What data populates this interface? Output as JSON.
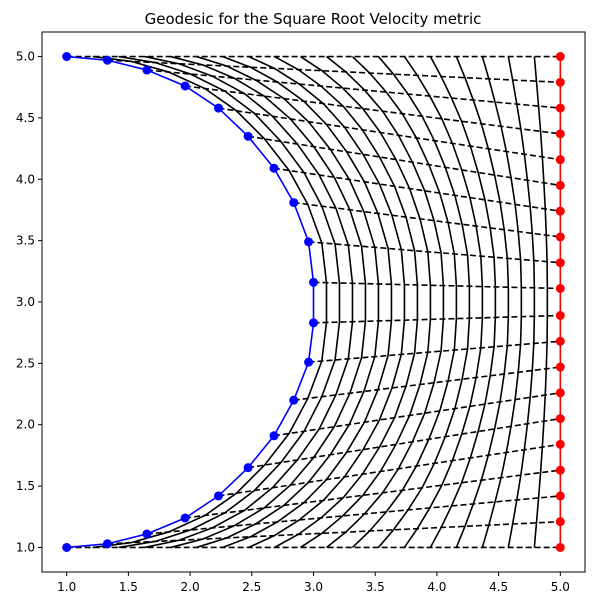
{
  "chart_data": {
    "type": "line",
    "title": "Geodesic for the Square Root Velocity metric",
    "xlabel": "",
    "ylabel": "",
    "xlim": [
      0.8,
      5.2
    ],
    "ylim": [
      0.8,
      5.2
    ],
    "x_ticks": [
      "1.0",
      "1.5",
      "2.0",
      "2.5",
      "3.0",
      "3.5",
      "4.0",
      "4.5",
      "5.0"
    ],
    "y_ticks": [
      "1.0",
      "1.5",
      "2.0",
      "2.5",
      "3.0",
      "3.5",
      "4.0",
      "4.5",
      "5.0"
    ],
    "grid": false,
    "n_points": 20,
    "n_curves": 20,
    "start_curve": {
      "name": "",
      "color": "#0000ff",
      "x": [
        1.0,
        1.33,
        1.65,
        1.96,
        2.23,
        2.47,
        2.68,
        2.84,
        2.96,
        3.0,
        3.0,
        2.96,
        2.84,
        2.68,
        2.47,
        2.23,
        1.96,
        1.65,
        1.33,
        1.0
      ],
      "y": [
        1.0,
        1.03,
        1.11,
        1.24,
        1.42,
        1.65,
        1.91,
        2.2,
        2.51,
        2.83,
        3.16,
        3.49,
        3.81,
        4.09,
        4.35,
        4.58,
        4.76,
        4.89,
        4.97,
        5.0
      ]
    },
    "end_curve": {
      "name": "",
      "color": "#ff0000",
      "x": [
        5.0,
        5.0,
        5.0,
        5.0,
        5.0,
        5.0,
        5.0,
        5.0,
        5.0,
        5.0,
        5.0,
        5.0,
        5.0,
        5.0,
        5.0,
        5.0,
        5.0,
        5.0,
        5.0,
        5.0
      ],
      "y": [
        1.0,
        1.21,
        1.42,
        1.63,
        1.84,
        2.05,
        2.26,
        2.47,
        2.68,
        2.89,
        3.11,
        3.32,
        3.53,
        3.74,
        3.95,
        4.16,
        4.37,
        4.58,
        4.79,
        5.0
      ]
    },
    "intermediate_style": {
      "color": "#000000",
      "linestyle": "solid"
    },
    "trajectory_style": {
      "color": "#000000",
      "linestyle": "dashed"
    },
    "endpoint_markers": {
      "start_color": "#0000ff",
      "end_color": "#ff0000"
    }
  }
}
